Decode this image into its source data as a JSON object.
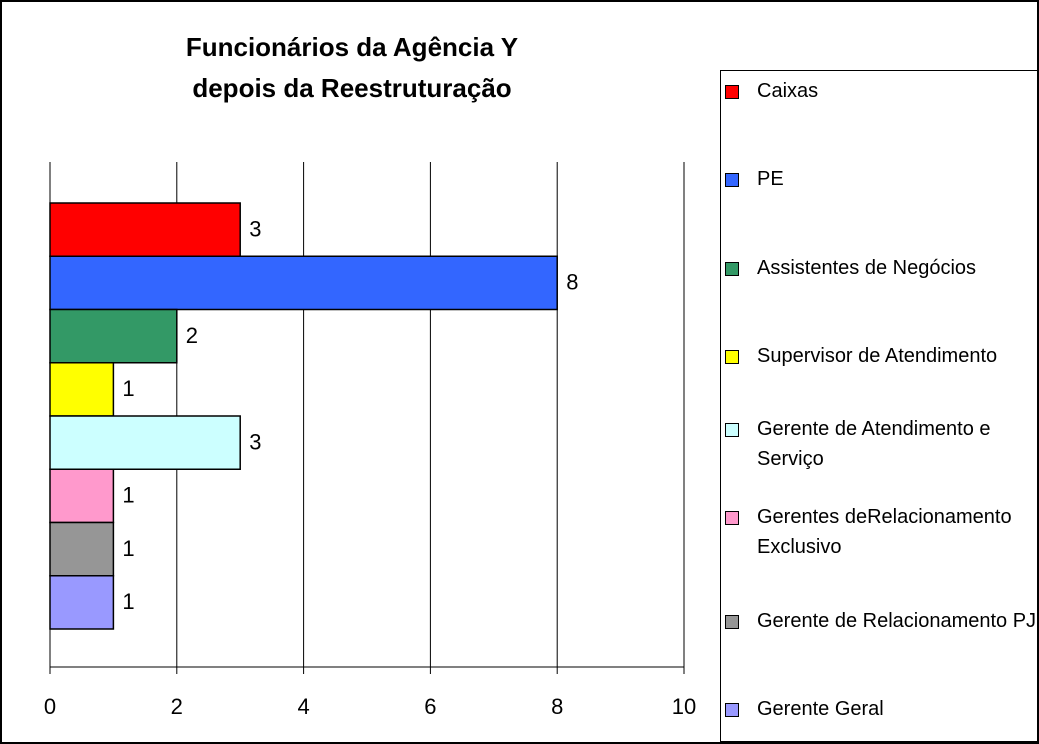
{
  "chart_data": {
    "type": "bar",
    "orientation": "horizontal",
    "title": [
      "Funcionários da Agência Y",
      "depois da Reestruturação"
    ],
    "series": [
      {
        "name": "Caixas",
        "color": "#ff0000",
        "values": [
          3
        ]
      },
      {
        "name": "PE",
        "color": "#3366ff",
        "values": [
          8
        ]
      },
      {
        "name": "Assistentes de Negócios",
        "color": "#339966",
        "values": [
          2
        ]
      },
      {
        "name": "Supervisor de Atendimento",
        "color": "#ffff00",
        "values": [
          1
        ]
      },
      {
        "name": "Gerente de Atendimento e Serviço",
        "color": "#ccffff",
        "values": [
          3
        ]
      },
      {
        "name": "Gerentes deRelacionamento Exclusivo",
        "color": "#ff99cc",
        "values": [
          1
        ]
      },
      {
        "name": "Gerente de Relacionamento PJ",
        "color": "#969696",
        "values": [
          1
        ]
      },
      {
        "name": "Gerente Geral",
        "color": "#9999ff",
        "values": [
          1
        ]
      }
    ],
    "xlim": [
      0,
      10
    ],
    "xticks": [
      0,
      2,
      4,
      6,
      8,
      10
    ],
    "grid": true,
    "legend": "right"
  }
}
